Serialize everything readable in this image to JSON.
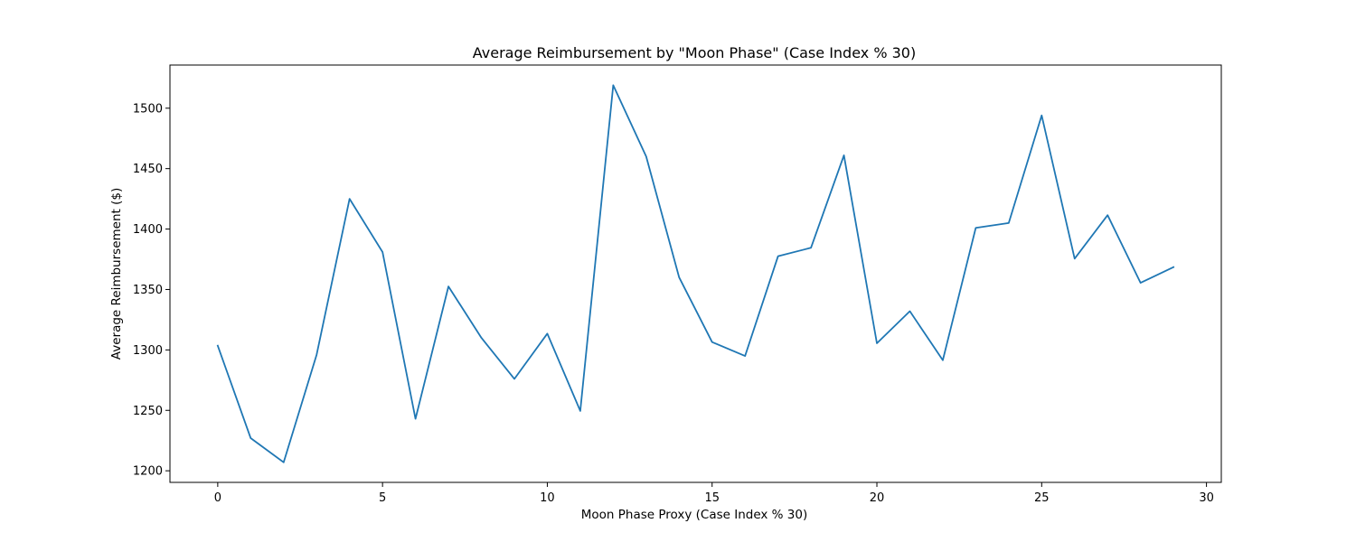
{
  "chart_data": {
    "type": "line",
    "title": "Average Reimbursement by \"Moon Phase\" (Case Index % 30)",
    "xlabel": "Moon Phase Proxy (Case Index % 30)",
    "ylabel": "Average Reimbursement ($)",
    "xlim": [
      -1.45,
      30.45
    ],
    "ylim": [
      1190.4,
      1535.7
    ],
    "xticks": [
      0,
      5,
      10,
      15,
      20,
      25,
      30
    ],
    "yticks": [
      1200,
      1250,
      1300,
      1350,
      1400,
      1450,
      1500
    ],
    "grid": false,
    "legend": "none",
    "series": [
      {
        "color": "#1f77b4",
        "x": [
          0,
          1,
          2,
          3,
          4,
          5,
          6,
          7,
          8,
          9,
          10,
          11,
          12,
          13,
          14,
          15,
          16,
          17,
          18,
          19,
          20,
          21,
          22,
          23,
          24,
          25,
          26,
          27,
          28,
          29
        ],
        "y": [
          1303.5,
          1227.0,
          1207.0,
          1296.0,
          1425.0,
          1381.0,
          1243.0,
          1352.5,
          1310.0,
          1276.0,
          1313.5,
          1249.5,
          1519.0,
          1460.0,
          1360.0,
          1306.5,
          1295.0,
          1377.5,
          1384.5,
          1461.0,
          1305.5,
          1332.0,
          1291.5,
          1401.0,
          1405.0,
          1494.0,
          1375.5,
          1411.5,
          1355.5,
          1368.5
        ]
      }
    ]
  }
}
